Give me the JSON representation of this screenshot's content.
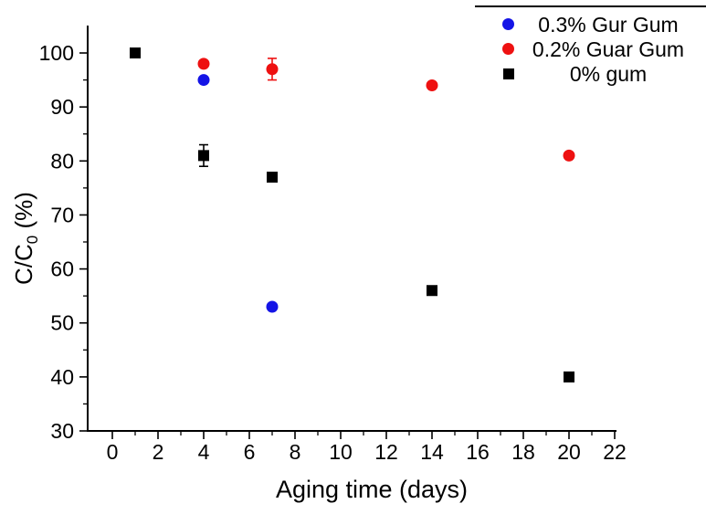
{
  "chart_data": {
    "type": "scatter",
    "title": "",
    "xlabel": "Aging time (days)",
    "ylabel_main": "C/C",
    "ylabel_sub": "0",
    "ylabel_rest": " (%)",
    "xlim": [
      0,
      22
    ],
    "ylim": [
      30,
      100
    ],
    "grid": false,
    "legend_position": "top-right",
    "x_ticks": [
      0,
      2,
      4,
      6,
      8,
      10,
      12,
      14,
      16,
      18,
      20,
      22
    ],
    "x_minor_ticks": [
      1,
      3,
      5,
      7,
      9,
      11,
      13,
      15,
      17,
      19,
      21
    ],
    "y_ticks": [
      30,
      40,
      50,
      60,
      70,
      80,
      90,
      100
    ],
    "y_minor_ticks": [
      35,
      45,
      55,
      65,
      75,
      85,
      95
    ],
    "axis_color": "#000000",
    "series": [
      {
        "name": "0.3% Gur Gum",
        "color": "#1414e6",
        "marker": "circle",
        "points": [
          {
            "x": 4,
            "y": 95,
            "err": 0
          },
          {
            "x": 7,
            "y": 53,
            "err": 0
          }
        ]
      },
      {
        "name": "0.2% Guar Gum",
        "color": "#ee1111",
        "marker": "circle",
        "points": [
          {
            "x": 4,
            "y": 98,
            "err": 0
          },
          {
            "x": 7,
            "y": 97,
            "err": 2
          },
          {
            "x": 14,
            "y": 94,
            "err": 0
          },
          {
            "x": 20,
            "y": 81,
            "err": 0
          }
        ]
      },
      {
        "name": "0% gum",
        "color": "#000000",
        "marker": "square",
        "points": [
          {
            "x": 1,
            "y": 100,
            "err": 0
          },
          {
            "x": 4,
            "y": 81,
            "err": 2
          },
          {
            "x": 7,
            "y": 77,
            "err": 0
          },
          {
            "x": 14,
            "y": 56,
            "err": 0
          },
          {
            "x": 20,
            "y": 40,
            "err": 0
          }
        ]
      }
    ]
  }
}
